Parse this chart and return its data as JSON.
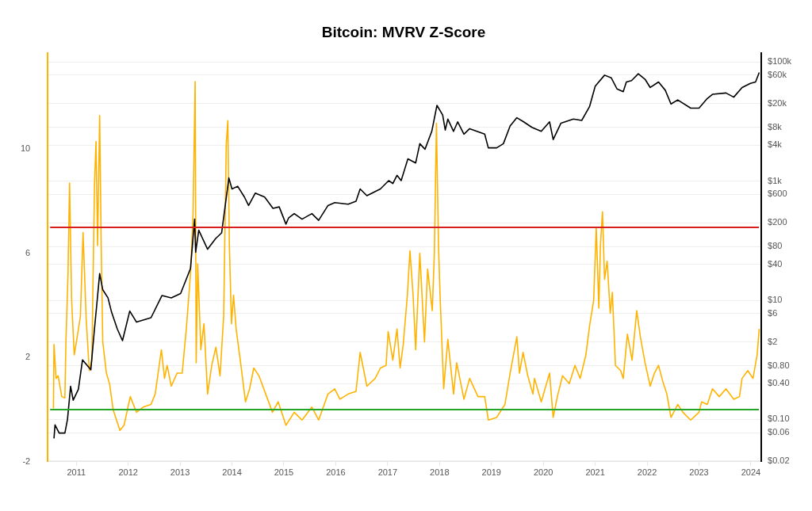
{
  "chart_data": {
    "type": "line",
    "title": "Bitcoin: MVRV Z-Score",
    "xlim": [
      2010.45,
      2024.2
    ],
    "xticks": [
      2011,
      2012,
      2013,
      2014,
      2015,
      2016,
      2017,
      2018,
      2019,
      2020,
      2021,
      2022,
      2023,
      2024
    ],
    "ylim": [
      -2,
      13.7
    ],
    "yticks": [
      -2,
      2,
      6,
      10
    ],
    "y2lim": [
      0.0195,
      142000
    ],
    "log": "y2",
    "y2ticks": [
      {
        "value": 0.02,
        "label": "$0.02"
      },
      {
        "value": 0.06,
        "label": "$0.06"
      },
      {
        "value": 0.1,
        "label": "$0.10"
      },
      {
        "value": 0.4,
        "label": "$0.40"
      },
      {
        "value": 0.8,
        "label": "$0.80"
      },
      {
        "value": 2,
        "label": "$2"
      },
      {
        "value": 6,
        "label": "$6"
      },
      {
        "value": 10,
        "label": "$10"
      },
      {
        "value": 40,
        "label": "$40"
      },
      {
        "value": 80,
        "label": "$80"
      },
      {
        "value": 200,
        "label": "$200"
      },
      {
        "value": 600,
        "label": "$600"
      },
      {
        "value": 1000,
        "label": "$1k"
      },
      {
        "value": 4000,
        "label": "$4k"
      },
      {
        "value": 8000,
        "label": "$8k"
      },
      {
        "value": 20000,
        "label": "$20k"
      },
      {
        "value": 60000,
        "label": "$60k"
      },
      {
        "value": 100000,
        "label": "$100k"
      }
    ],
    "grid": "y",
    "line_style": "solid",
    "ref_lines": [
      {
        "axis": "y",
        "value": 7,
        "color": "#d91c1c"
      },
      {
        "axis": "y",
        "value": 0,
        "color": "#23a527"
      }
    ],
    "series": [
      {
        "color": "#ffb300",
        "axis": "y",
        "x": [
          2010.56,
          2010.57,
          2010.61,
          2010.65,
          2010.72,
          2010.78,
          2010.8,
          2010.84,
          2010.87,
          2010.91,
          2010.96,
          2011.01,
          2011.08,
          2011.13,
          2011.19,
          2011.25,
          2011.3,
          2011.35,
          2011.38,
          2011.41,
          2011.45,
          2011.48,
          2011.51,
          2011.58,
          2011.64,
          2011.71,
          2011.84,
          2011.92,
          2012.04,
          2012.16,
          2012.29,
          2012.44,
          2012.52,
          2012.64,
          2012.7,
          2012.75,
          2012.83,
          2012.94,
          2013.04,
          2013.12,
          2013.2,
          2013.25,
          2013.29,
          2013.31,
          2013.34,
          2013.4,
          2013.46,
          2013.53,
          2013.61,
          2013.69,
          2013.77,
          2013.84,
          2013.89,
          2013.92,
          2013.95,
          2013.99,
          2014.03,
          2014.08,
          2014.16,
          2014.26,
          2014.34,
          2014.42,
          2014.52,
          2014.65,
          2014.78,
          2014.89,
          2015.04,
          2015.2,
          2015.35,
          2015.54,
          2015.67,
          2015.85,
          2015.98,
          2016.08,
          2016.24,
          2016.39,
          2016.47,
          2016.6,
          2016.76,
          2016.86,
          2016.97,
          2017.01,
          2017.1,
          2017.18,
          2017.24,
          2017.3,
          2017.38,
          2017.43,
          2017.49,
          2017.54,
          2017.62,
          2017.71,
          2017.77,
          2017.86,
          2017.9,
          2017.94,
          2017.98,
          2018.01,
          2018.08,
          2018.16,
          2018.27,
          2018.33,
          2018.47,
          2018.58,
          2018.74,
          2018.87,
          2018.94,
          2019.1,
          2019.26,
          2019.36,
          2019.49,
          2019.54,
          2019.61,
          2019.7,
          2019.8,
          2019.83,
          2019.96,
          2020.12,
          2020.19,
          2020.27,
          2020.37,
          2020.5,
          2020.61,
          2020.71,
          2020.82,
          2020.89,
          2020.97,
          2021.02,
          2021.07,
          2021.1,
          2021.14,
          2021.18,
          2021.23,
          2021.29,
          2021.33,
          2021.39,
          2021.49,
          2021.54,
          2021.62,
          2021.71,
          2021.8,
          2021.87,
          2021.96,
          2022.06,
          2022.14,
          2022.22,
          2022.3,
          2022.38,
          2022.46,
          2022.59,
          2022.69,
          2022.84,
          2023.0,
          2023.05,
          2023.16,
          2023.26,
          2023.39,
          2023.52,
          2023.67,
          2023.78,
          2023.83,
          2023.94,
          2024.04,
          2024.12,
          2024.16
        ],
        "values": [
          0.05,
          2.5,
          1.2,
          1.3,
          0.5,
          0.45,
          2.6,
          5.2,
          8.7,
          4.2,
          2.1,
          2.7,
          3.6,
          6.8,
          3.5,
          1.5,
          1.9,
          8.6,
          10.3,
          6.3,
          11.3,
          6.3,
          2.6,
          1.4,
          1.0,
          0.0,
          -0.8,
          -0.6,
          0.5,
          -0.1,
          0.1,
          0.2,
          0.6,
          2.3,
          1.2,
          1.7,
          0.9,
          1.4,
          1.4,
          3.1,
          5.2,
          7.5,
          12.6,
          1.8,
          5.6,
          2.3,
          3.3,
          0.6,
          1.7,
          2.4,
          1.3,
          3.6,
          10.2,
          11.1,
          6.3,
          3.3,
          4.4,
          3.1,
          1.9,
          0.3,
          0.8,
          1.6,
          1.3,
          0.6,
          -0.1,
          0.3,
          -0.6,
          -0.1,
          -0.4,
          0.1,
          -0.4,
          0.6,
          0.8,
          0.4,
          0.6,
          0.7,
          2.2,
          0.9,
          1.2,
          1.6,
          1.7,
          3.0,
          1.9,
          3.1,
          1.6,
          2.5,
          4.4,
          6.1,
          4.4,
          2.3,
          6.0,
          2.6,
          5.4,
          3.8,
          6.0,
          11.0,
          6.3,
          4.4,
          0.8,
          2.7,
          0.6,
          1.8,
          0.4,
          1.2,
          0.5,
          0.5,
          -0.4,
          -0.3,
          0.2,
          1.4,
          2.8,
          1.4,
          2.2,
          1.3,
          0.6,
          1.2,
          0.3,
          1.4,
          -0.3,
          0.5,
          1.3,
          1.0,
          1.7,
          1.2,
          2.1,
          3.2,
          4.2,
          7.0,
          3.9,
          6.3,
          7.6,
          5.0,
          5.7,
          3.7,
          4.5,
          1.7,
          1.5,
          1.2,
          2.9,
          1.9,
          3.8,
          2.8,
          1.8,
          0.9,
          1.4,
          1.7,
          1.1,
          0.6,
          -0.3,
          0.2,
          -0.1,
          -0.4,
          -0.1,
          0.3,
          0.2,
          0.8,
          0.5,
          0.8,
          0.4,
          0.5,
          1.2,
          1.5,
          1.2,
          2.1,
          3.1
        ]
      },
      {
        "color": "#000000",
        "axis": "y2",
        "x": [
          2010.57,
          2010.59,
          2010.67,
          2010.78,
          2010.83,
          2010.89,
          2010.94,
          2011.04,
          2011.12,
          2011.28,
          2011.35,
          2011.4,
          2011.45,
          2011.51,
          2011.61,
          2011.68,
          2011.79,
          2011.89,
          2012.03,
          2012.16,
          2012.44,
          2012.65,
          2012.83,
          2013.01,
          2013.2,
          2013.28,
          2013.3,
          2013.36,
          2013.53,
          2013.69,
          2013.8,
          2013.87,
          2013.94,
          2014.0,
          2014.11,
          2014.24,
          2014.32,
          2014.45,
          2014.63,
          2014.79,
          2014.91,
          2015.04,
          2015.09,
          2015.2,
          2015.35,
          2015.54,
          2015.67,
          2015.85,
          2015.98,
          2016.24,
          2016.39,
          2016.47,
          2016.6,
          2016.86,
          2017.02,
          2017.1,
          2017.18,
          2017.26,
          2017.39,
          2017.54,
          2017.62,
          2017.72,
          2017.85,
          2017.95,
          2018.06,
          2018.11,
          2018.16,
          2018.27,
          2018.35,
          2018.47,
          2018.58,
          2018.87,
          2018.94,
          2019.1,
          2019.23,
          2019.36,
          2019.49,
          2019.62,
          2019.78,
          2019.96,
          2020.12,
          2020.19,
          2020.34,
          2020.58,
          2020.74,
          2020.89,
          2021.0,
          2021.18,
          2021.31,
          2021.42,
          2021.54,
          2021.6,
          2021.7,
          2021.83,
          2021.96,
          2022.06,
          2022.22,
          2022.35,
          2022.46,
          2022.59,
          2022.84,
          2023.0,
          2023.16,
          2023.26,
          2023.52,
          2023.67,
          2023.83,
          2023.99,
          2024.09,
          2024.16
        ],
        "values": [
          0.048,
          0.081,
          0.059,
          0.059,
          0.1,
          0.36,
          0.21,
          0.32,
          1.0,
          0.68,
          3.3,
          9.5,
          28,
          15,
          11,
          6.3,
          3.3,
          2.1,
          6.6,
          4.3,
          5.1,
          12,
          11,
          13,
          34,
          230,
          64,
          150,
          72,
          110,
          135,
          390,
          1130,
          740,
          820,
          540,
          390,
          630,
          540,
          350,
          370,
          190,
          240,
          285,
          230,
          285,
          220,
          390,
          435,
          410,
          460,
          740,
          570,
          740,
          1020,
          910,
          1250,
          1020,
          2370,
          2020,
          4250,
          3430,
          6850,
          18700,
          12900,
          7200,
          11000,
          6850,
          9900,
          6150,
          7600,
          6150,
          3620,
          3620,
          4250,
          8450,
          11600,
          9900,
          8000,
          6850,
          9900,
          4980,
          9400,
          11000,
          10450,
          17750,
          39300,
          60100,
          54100,
          35300,
          31800,
          46100,
          48600,
          63400,
          51300,
          37300,
          46100,
          33600,
          19700,
          23100,
          16800,
          16800,
          24400,
          28700,
          30200,
          25700,
          37300,
          43800,
          46100,
          66800
        ]
      }
    ]
  }
}
